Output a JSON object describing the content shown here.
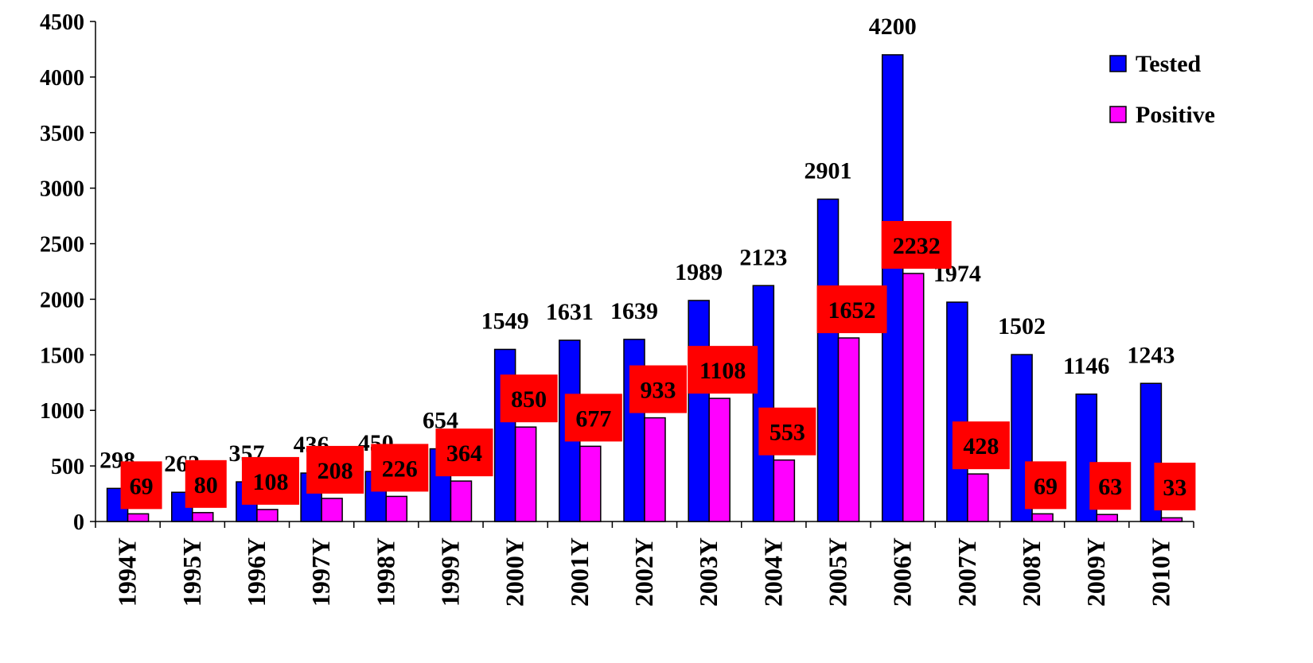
{
  "chart_data": {
    "type": "bar",
    "categories": [
      "1994Y",
      "1995Y",
      "1996Y",
      "1997Y",
      "1998Y",
      "1999Y",
      "2000Y",
      "2001Y",
      "2002Y",
      "2003Y",
      "2004Y",
      "2005Y",
      "2006Y",
      "2007Y",
      "2008Y",
      "2009Y",
      "2010Y"
    ],
    "series": [
      {
        "name": "Tested",
        "color": "#0000ff",
        "values": [
          298,
          263,
          357,
          436,
          450,
          654,
          1549,
          1631,
          1639,
          1989,
          2123,
          2901,
          4200,
          1974,
          1502,
          1146,
          1243
        ],
        "labels": [
          "298",
          "263",
          "357",
          "436",
          "450",
          "654",
          "1549",
          "1631",
          "1639",
          "1989",
          "2123",
          "2901",
          "4200",
          "1974",
          "1502",
          "1146",
          "1243"
        ]
      },
      {
        "name": "Positive",
        "color": "#ff00ff",
        "label_bg": "#ff0000",
        "values": [
          69,
          80,
          108,
          208,
          226,
          364,
          850,
          677,
          933,
          1108,
          553,
          1652,
          2232,
          428,
          69,
          63,
          33
        ],
        "labels": [
          "69",
          "80",
          "108",
          "208",
          "226",
          "364",
          "850",
          "677",
          "933",
          "1108",
          "553",
          "1652",
          "2232",
          "428",
          "69",
          "63",
          "33"
        ]
      }
    ],
    "title": "",
    "xlabel": "",
    "ylabel": "",
    "ylim": [
      0,
      4500
    ],
    "yticks": [
      "0",
      "500",
      "1000",
      "1500",
      "2000",
      "2500",
      "3000",
      "3500",
      "4000",
      "4500"
    ],
    "grid": false,
    "legend_position": "top-right"
  }
}
